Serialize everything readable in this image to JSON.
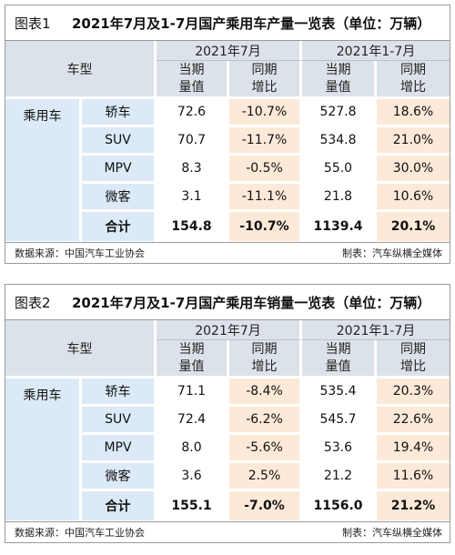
{
  "tables": [
    {
      "fig_label": "图表1",
      "title": "2021年7月及1-7月国产乘用车产量一览表（单位：万辆）",
      "header": {
        "model_label": "车型",
        "period_a": "2021年7月",
        "period_b": "2021年1-7月",
        "col1_l1": "当期",
        "col1_l2": "量值",
        "col2_l1": "同期",
        "col2_l2": "增比",
        "col3_l1": "当期",
        "col3_l2": "量值",
        "col4_l1": "同期",
        "col4_l2": "增比"
      },
      "category": "乘用车",
      "rows": [
        {
          "type": "轿车",
          "m_val": "72.6",
          "m_yoy": "-10.7%",
          "c_val": "527.8",
          "c_yoy": "18.6%"
        },
        {
          "type": "SUV",
          "m_val": "70.7",
          "m_yoy": "-11.7%",
          "c_val": "534.8",
          "c_yoy": "21.0%"
        },
        {
          "type": "MPV",
          "m_val": "8.3",
          "m_yoy": "-0.5%",
          "c_val": "55.0",
          "c_yoy": "30.0%"
        },
        {
          "type": "微客",
          "m_val": "3.1",
          "m_yoy": "-11.1%",
          "c_val": "21.8",
          "c_yoy": "10.6%"
        }
      ],
      "total": {
        "label": "合计",
        "m_val": "154.8",
        "m_yoy": "-10.7%",
        "c_val": "1139.4",
        "c_yoy": "20.1%"
      },
      "source": "数据来源：中国汽车工业协会",
      "maker": "制表：汽车纵横全媒体"
    },
    {
      "fig_label": "图表2",
      "title": "2021年7月及1-7月国产乘用车销量一览表（单位：万辆）",
      "header": {
        "model_label": "车型",
        "period_a": "2021年7月",
        "period_b": "2021年1-7月",
        "col1_l1": "当期",
        "col1_l2": "量值",
        "col2_l1": "同期",
        "col2_l2": "增比",
        "col3_l1": "当期",
        "col3_l2": "量值",
        "col4_l1": "同期",
        "col4_l2": "增比"
      },
      "category": "乘用车",
      "rows": [
        {
          "type": "轿车",
          "m_val": "71.1",
          "m_yoy": "-8.4%",
          "c_val": "535.4",
          "c_yoy": "20.3%"
        },
        {
          "type": "SUV",
          "m_val": "72.4",
          "m_yoy": "-6.2%",
          "c_val": "545.7",
          "c_yoy": "22.6%"
        },
        {
          "type": "MPV",
          "m_val": "8.0",
          "m_yoy": "-5.6%",
          "c_val": "53.6",
          "c_yoy": "19.4%"
        },
        {
          "type": "微客",
          "m_val": "3.6",
          "m_yoy": "2.5%",
          "c_val": "21.2",
          "c_yoy": "11.6%"
        }
      ],
      "total": {
        "label": "合计",
        "m_val": "155.1",
        "m_yoy": "-7.0%",
        "c_val": "1156.0",
        "c_yoy": "21.2%"
      },
      "source": "数据来源：中国汽车工业协会",
      "maker": "制表：汽车纵横全媒体"
    }
  ]
}
